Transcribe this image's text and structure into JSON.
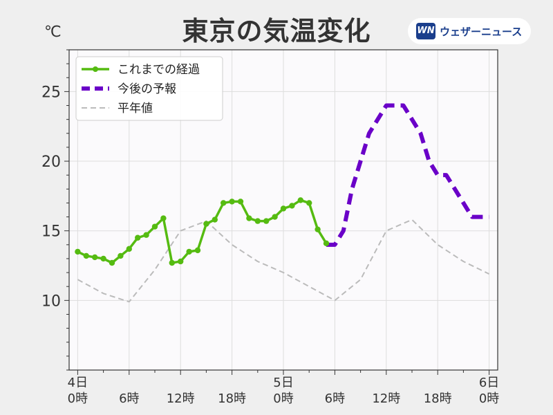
{
  "chart_data": {
    "type": "line",
    "title": "東京の気温変化",
    "unit": "℃",
    "brand": "ウェザーニュース",
    "brand_logo": "WN",
    "ylim": [
      5,
      28
    ],
    "yticks": [
      10,
      15,
      20,
      25
    ],
    "xlim": [
      -1,
      49
    ],
    "xticks": [
      {
        "x": 0,
        "line1": "4日",
        "line2": "0時"
      },
      {
        "x": 6,
        "line1": "",
        "line2": "6時"
      },
      {
        "x": 12,
        "line1": "",
        "line2": "12時"
      },
      {
        "x": 18,
        "line1": "",
        "line2": "18時"
      },
      {
        "x": 24,
        "line1": "5日",
        "line2": "0時"
      },
      {
        "x": 30,
        "line1": "",
        "line2": "6時"
      },
      {
        "x": 36,
        "line1": "",
        "line2": "12時"
      },
      {
        "x": 42,
        "line1": "",
        "line2": "18時"
      },
      {
        "x": 48,
        "line1": "6日",
        "line2": "0時"
      }
    ],
    "grid": true,
    "legend_position": "top-left",
    "series": [
      {
        "name": "これまでの経過",
        "style": "solid-markers",
        "color": "#55bb11",
        "x": [
          0,
          1,
          2,
          3,
          4,
          5,
          6,
          7,
          8,
          9,
          10,
          11,
          12,
          13,
          14,
          15,
          16,
          17,
          18,
          19,
          20,
          21,
          22,
          23,
          24,
          25,
          26,
          27,
          28,
          29
        ],
        "y": [
          13.5,
          13.2,
          13.1,
          13.0,
          12.7,
          13.2,
          13.7,
          14.5,
          14.7,
          15.3,
          15.9,
          12.7,
          12.8,
          13.5,
          13.6,
          15.5,
          15.8,
          17.0,
          17.1,
          17.1,
          15.9,
          15.7,
          15.7,
          16.0,
          16.6,
          16.8,
          17.2,
          17.0,
          15.1,
          14.1
        ]
      },
      {
        "name": "今後の予報",
        "style": "dashed-thick",
        "color": "#6a00c8",
        "x": [
          29,
          30,
          31,
          32,
          33,
          34,
          35,
          36,
          37,
          38,
          39,
          40,
          41,
          42,
          43,
          44,
          45,
          46,
          47,
          48
        ],
        "y": [
          14.0,
          14.0,
          15.0,
          18.0,
          20.0,
          22.0,
          23.0,
          24.0,
          24.0,
          24.0,
          23.0,
          22.0,
          20.0,
          19.0,
          19.0,
          18.0,
          17.0,
          16.0,
          16.0,
          16.0
        ]
      },
      {
        "name": "平年値",
        "style": "dashed-thin",
        "color": "#bbbbbb",
        "x": [
          0,
          3,
          6,
          9,
          12,
          15,
          18,
          21,
          24,
          27,
          30,
          33,
          36,
          39,
          42,
          45,
          48
        ],
        "y": [
          11.5,
          10.5,
          9.9,
          12.2,
          15.0,
          15.7,
          14.0,
          12.8,
          12.0,
          11.0,
          10.0,
          11.5,
          15.0,
          15.8,
          14.0,
          12.8,
          11.9
        ]
      }
    ]
  }
}
